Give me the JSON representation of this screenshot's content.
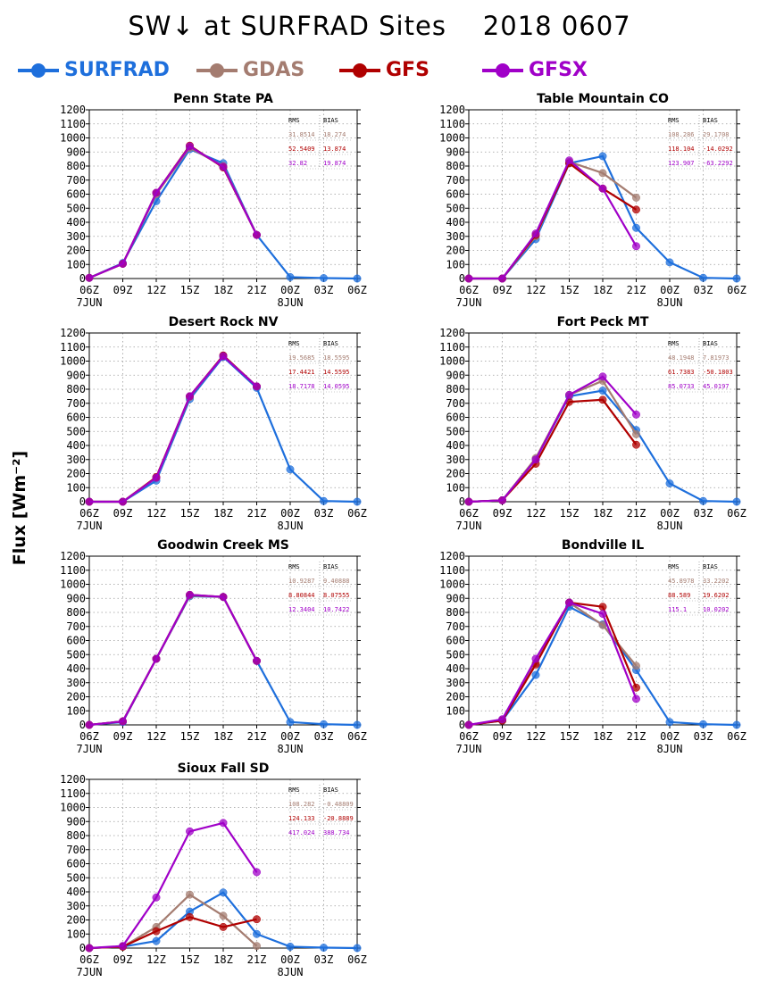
{
  "header": {
    "title": "SW↓ at SURFRAD Sites    2018 0607"
  },
  "legend": {
    "items": [
      {
        "label": "SURFRAD",
        "color": "#1e6fdc"
      },
      {
        "label": "GDAS",
        "color": "#a47c70"
      },
      {
        "label": "GFS",
        "color": "#b00000"
      },
      {
        "label": "GFSX",
        "color": "#a000c8"
      }
    ]
  },
  "axis": {
    "ylabel": "Flux [Wm⁻²]"
  },
  "chart_data": [
    {
      "type": "line",
      "title": "Penn State PA",
      "categories": [
        "06Z",
        "09Z",
        "12Z",
        "15Z",
        "18Z",
        "21Z",
        "00Z",
        "03Z",
        "06Z"
      ],
      "category_sublabels": [
        "7JUN",
        "",
        "",
        "",
        "",
        "",
        "8JUN",
        "",
        ""
      ],
      "ylim": [
        0,
        1200
      ],
      "yticks": [
        0,
        100,
        200,
        300,
        400,
        500,
        600,
        700,
        800,
        900,
        1000,
        1100,
        1200
      ],
      "grid": true,
      "series": [
        {
          "name": "SURFRAD",
          "values": [
            5,
            110,
            550,
            920,
            820,
            310,
            10,
            3,
            0
          ]
        },
        {
          "name": "GDAS",
          "values": [
            5,
            105,
            600,
            930,
            800,
            310,
            null,
            null,
            null
          ]
        },
        {
          "name": "GFS",
          "values": [
            5,
            105,
            610,
            945,
            790,
            310,
            null,
            null,
            null
          ]
        },
        {
          "name": "GFSX",
          "values": [
            5,
            105,
            610,
            940,
            795,
            310,
            null,
            null,
            null
          ]
        }
      ],
      "stats": {
        "header": [
          "RMS",
          "BIAS"
        ],
        "rows": [
          [
            "31.8514",
            "18.274"
          ],
          [
            "52.5409",
            "13.874"
          ],
          [
            "32.82",
            "19.874"
          ]
        ]
      }
    },
    {
      "type": "line",
      "title": "Table Mountain CO",
      "categories": [
        "06Z",
        "09Z",
        "12Z",
        "15Z",
        "18Z",
        "21Z",
        "00Z",
        "03Z",
        "06Z"
      ],
      "category_sublabels": [
        "7JUN",
        "",
        "",
        "",
        "",
        "",
        "8JUN",
        "",
        ""
      ],
      "ylim": [
        0,
        1200
      ],
      "yticks": [
        0,
        100,
        200,
        300,
        400,
        500,
        600,
        700,
        800,
        900,
        1000,
        1100,
        1200
      ],
      "grid": true,
      "series": [
        {
          "name": "SURFRAD",
          "values": [
            0,
            0,
            280,
            820,
            870,
            360,
            115,
            5,
            0
          ]
        },
        {
          "name": "GDAS",
          "values": [
            0,
            0,
            300,
            830,
            750,
            575,
            null,
            null,
            null
          ]
        },
        {
          "name": "GFS",
          "values": [
            0,
            0,
            310,
            820,
            640,
            490,
            null,
            null,
            null
          ]
        },
        {
          "name": "GFSX",
          "values": [
            0,
            0,
            320,
            840,
            640,
            230,
            null,
            null,
            null
          ]
        }
      ],
      "stats": {
        "header": [
          "RMS",
          "BIAS"
        ],
        "rows": [
          [
            "108.286",
            "29.1708"
          ],
          [
            "118.104",
            "-14.0292"
          ],
          [
            "123.907",
            "-63.2292"
          ]
        ]
      }
    },
    {
      "type": "line",
      "title": "Desert Rock NV",
      "categories": [
        "06Z",
        "09Z",
        "12Z",
        "15Z",
        "18Z",
        "21Z",
        "00Z",
        "03Z",
        "06Z"
      ],
      "category_sublabels": [
        "7JUN",
        "",
        "",
        "",
        "",
        "",
        "8JUN",
        "",
        ""
      ],
      "ylim": [
        0,
        1200
      ],
      "yticks": [
        0,
        100,
        200,
        300,
        400,
        500,
        600,
        700,
        800,
        900,
        1000,
        1100,
        1200
      ],
      "grid": true,
      "series": [
        {
          "name": "SURFRAD",
          "values": [
            0,
            0,
            150,
            730,
            1030,
            810,
            230,
            5,
            0
          ]
        },
        {
          "name": "GDAS",
          "values": [
            0,
            0,
            170,
            745,
            1040,
            820,
            null,
            null,
            null
          ]
        },
        {
          "name": "GFS",
          "values": [
            0,
            0,
            175,
            750,
            1040,
            820,
            null,
            null,
            null
          ]
        },
        {
          "name": "GFSX",
          "values": [
            0,
            0,
            170,
            750,
            1035,
            820,
            null,
            null,
            null
          ]
        }
      ],
      "stats": {
        "header": [
          "RMS",
          "BIAS"
        ],
        "rows": [
          [
            "19.5685",
            "18.5595"
          ],
          [
            "17.4421",
            "14.5595"
          ],
          [
            "18.7178",
            "14.0595"
          ]
        ]
      }
    },
    {
      "type": "line",
      "title": "Fort Peck MT",
      "categories": [
        "06Z",
        "09Z",
        "12Z",
        "15Z",
        "18Z",
        "21Z",
        "00Z",
        "03Z",
        "06Z"
      ],
      "category_sublabels": [
        "7JUN",
        "",
        "",
        "",
        "",
        "",
        "8JUN",
        "",
        ""
      ],
      "ylim": [
        0,
        1200
      ],
      "yticks": [
        0,
        100,
        200,
        300,
        400,
        500,
        600,
        700,
        800,
        900,
        1000,
        1100,
        1200
      ],
      "grid": true,
      "series": [
        {
          "name": "SURFRAD",
          "values": [
            0,
            10,
            300,
            750,
            790,
            510,
            130,
            5,
            0
          ]
        },
        {
          "name": "GDAS",
          "values": [
            0,
            10,
            310,
            760,
            860,
            480,
            null,
            null,
            null
          ]
        },
        {
          "name": "GFS",
          "values": [
            0,
            10,
            270,
            710,
            725,
            405,
            null,
            null,
            null
          ]
        },
        {
          "name": "GFSX",
          "values": [
            0,
            10,
            300,
            760,
            890,
            620,
            null,
            null,
            null
          ]
        }
      ],
      "stats": {
        "header": [
          "RMS",
          "BIAS"
        ],
        "rows": [
          [
            "48.1948",
            "7.81973"
          ],
          [
            "61.7383",
            "-50.1803"
          ],
          [
            "85.0733",
            "45.0197"
          ]
        ]
      }
    },
    {
      "type": "line",
      "title": "Goodwin Creek MS",
      "categories": [
        "06Z",
        "09Z",
        "12Z",
        "15Z",
        "18Z",
        "21Z",
        "00Z",
        "03Z",
        "06Z"
      ],
      "category_sublabels": [
        "7JUN",
        "",
        "",
        "",
        "",
        "",
        "8JUN",
        "",
        ""
      ],
      "ylim": [
        0,
        1200
      ],
      "yticks": [
        0,
        100,
        200,
        300,
        400,
        500,
        600,
        700,
        800,
        900,
        1000,
        1100,
        1200
      ],
      "grid": true,
      "series": [
        {
          "name": "SURFRAD",
          "values": [
            0,
            20,
            470,
            915,
            910,
            455,
            20,
            5,
            0
          ]
        },
        {
          "name": "GDAS",
          "values": [
            0,
            25,
            470,
            920,
            910,
            455,
            null,
            null,
            null
          ]
        },
        {
          "name": "GFS",
          "values": [
            0,
            25,
            470,
            925,
            910,
            455,
            null,
            null,
            null
          ]
        },
        {
          "name": "GFSX",
          "values": [
            0,
            25,
            470,
            925,
            910,
            455,
            null,
            null,
            null
          ]
        }
      ],
      "stats": {
        "header": [
          "RMS",
          "BIAS"
        ],
        "rows": [
          [
            "10.9287",
            "9.40888"
          ],
          [
            "8.80844",
            "8.07555"
          ],
          [
            "12.3404",
            "10.7422"
          ]
        ]
      }
    },
    {
      "type": "line",
      "title": "Bondville IL",
      "categories": [
        "06Z",
        "09Z",
        "12Z",
        "15Z",
        "18Z",
        "21Z",
        "00Z",
        "03Z",
        "06Z"
      ],
      "category_sublabels": [
        "7JUN",
        "",
        "",
        "",
        "",
        "",
        "8JUN",
        "",
        ""
      ],
      "ylim": [
        0,
        1200
      ],
      "yticks": [
        0,
        100,
        200,
        300,
        400,
        500,
        600,
        700,
        800,
        900,
        1000,
        1100,
        1200
      ],
      "grid": true,
      "series": [
        {
          "name": "SURFRAD",
          "values": [
            0,
            30,
            355,
            840,
            715,
            390,
            20,
            5,
            0
          ]
        },
        {
          "name": "GDAS",
          "values": [
            0,
            35,
            440,
            870,
            710,
            420,
            null,
            null,
            null
          ]
        },
        {
          "name": "GFS",
          "values": [
            0,
            30,
            430,
            870,
            840,
            265,
            null,
            null,
            null
          ]
        },
        {
          "name": "GFSX",
          "values": [
            0,
            40,
            470,
            870,
            790,
            185,
            null,
            null,
            null
          ]
        }
      ],
      "stats": {
        "header": [
          "RMS",
          "BIAS"
        ],
        "rows": [
          [
            "45.8978",
            "33.2202"
          ],
          [
            "88.589",
            "19.6202"
          ],
          [
            "115.1",
            "10.0202"
          ]
        ]
      }
    },
    {
      "type": "line",
      "title": "Sioux Fall SD",
      "categories": [
        "06Z",
        "09Z",
        "12Z",
        "15Z",
        "18Z",
        "21Z",
        "00Z",
        "03Z",
        "06Z"
      ],
      "category_sublabels": [
        "7JUN",
        "",
        "",
        "",
        "",
        "",
        "8JUN",
        "",
        ""
      ],
      "ylim": [
        0,
        1200
      ],
      "yticks": [
        0,
        100,
        200,
        300,
        400,
        500,
        600,
        700,
        800,
        900,
        1000,
        1100,
        1200
      ],
      "grid": true,
      "series": [
        {
          "name": "SURFRAD",
          "values": [
            0,
            10,
            50,
            260,
            395,
            100,
            10,
            3,
            0
          ]
        },
        {
          "name": "GDAS",
          "values": [
            0,
            10,
            150,
            380,
            230,
            15,
            null,
            null,
            null
          ]
        },
        {
          "name": "GFS",
          "values": [
            0,
            10,
            120,
            220,
            150,
            205,
            null,
            null,
            null
          ]
        },
        {
          "name": "GFSX",
          "values": [
            0,
            15,
            360,
            830,
            890,
            540,
            null,
            null,
            null
          ]
        }
      ],
      "stats": {
        "header": [
          "RMS",
          "BIAS"
        ],
        "rows": [
          [
            "108.282",
            "-0.48809"
          ],
          [
            "124.133",
            "-20.8889"
          ],
          [
            "417.024",
            "388.734"
          ]
        ]
      }
    }
  ]
}
